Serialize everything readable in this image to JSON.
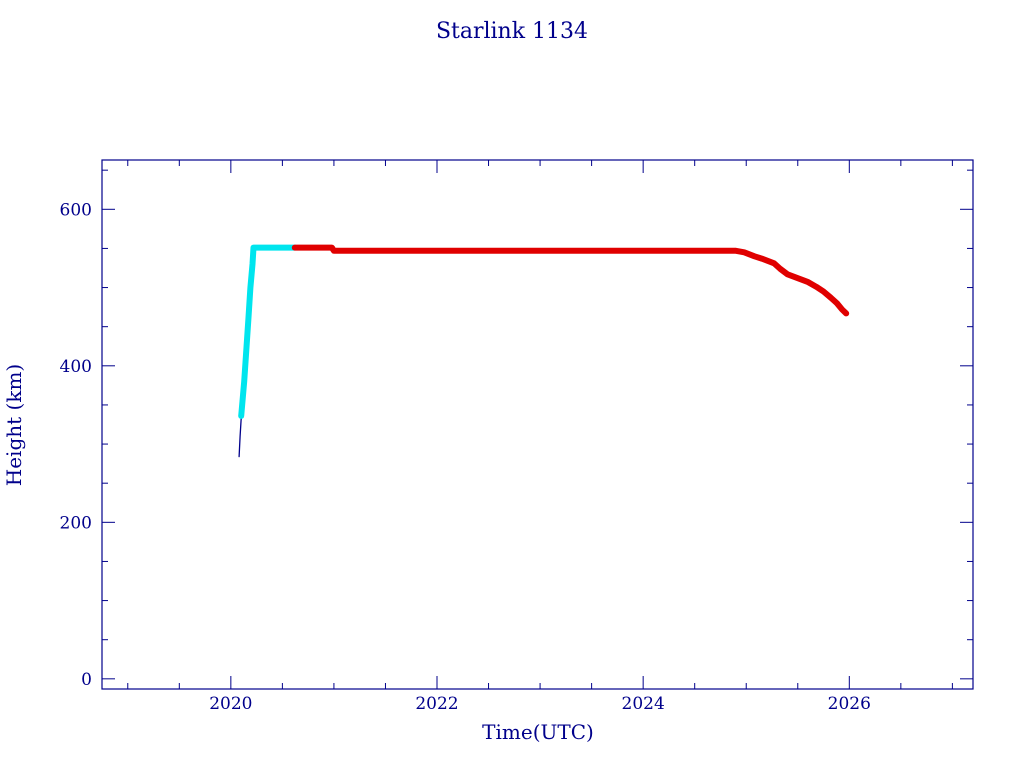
{
  "colors": {
    "axis": "#00008b",
    "text": "#00008b",
    "orbit_raising": "#00e5ee",
    "operational": "#e00000",
    "launch": "#00008b"
  },
  "chart_data": {
    "type": "line",
    "title": "Starlink 1134",
    "xlabel": "Time(UTC)",
    "ylabel": "Height (km)",
    "xlim": [
      2018.75,
      2027.2
    ],
    "ylim": [
      -13,
      663
    ],
    "x_ticks": [
      2020,
      2022,
      2024,
      2026
    ],
    "x_tick_labels": [
      "2020",
      "2022",
      "2024",
      "2026"
    ],
    "y_ticks": [
      0,
      200,
      400,
      600
    ],
    "y_tick_labels": [
      "0",
      "200",
      "400",
      "600"
    ],
    "grid": false,
    "legend": false,
    "series": [
      {
        "color_key": "launch",
        "style": "thin-line",
        "points": [
          [
            2020.08,
            284
          ],
          [
            2020.09,
            310
          ],
          [
            2020.1,
            333
          ],
          [
            2020.11,
            336
          ]
        ]
      },
      {
        "color_key": "orbit_raising",
        "style": "thick-line",
        "points": [
          [
            2020.1,
            336
          ],
          [
            2020.13,
            380
          ],
          [
            2020.15,
            420
          ],
          [
            2020.17,
            460
          ],
          [
            2020.19,
            500
          ],
          [
            2020.21,
            530
          ],
          [
            2020.22,
            551
          ],
          [
            2020.35,
            551
          ],
          [
            2020.5,
            551
          ],
          [
            2020.62,
            551
          ]
        ]
      },
      {
        "color_key": "operational",
        "style": "thick-line",
        "points": [
          [
            2020.62,
            551
          ],
          [
            2020.8,
            551
          ],
          [
            2020.98,
            551
          ],
          [
            2021.0,
            547
          ],
          [
            2021.5,
            547
          ],
          [
            2022.0,
            547
          ],
          [
            2022.5,
            547
          ],
          [
            2023.0,
            547
          ],
          [
            2023.5,
            547
          ],
          [
            2024.0,
            547
          ],
          [
            2024.5,
            547
          ],
          [
            2024.9,
            547
          ],
          [
            2024.98,
            545
          ],
          [
            2025.08,
            540
          ],
          [
            2025.15,
            537
          ],
          [
            2025.27,
            531
          ],
          [
            2025.33,
            524
          ],
          [
            2025.4,
            517
          ],
          [
            2025.5,
            512
          ],
          [
            2025.6,
            507
          ],
          [
            2025.68,
            501
          ],
          [
            2025.75,
            495
          ],
          [
            2025.82,
            487
          ],
          [
            2025.88,
            480
          ],
          [
            2025.93,
            472
          ],
          [
            2025.97,
            467
          ]
        ]
      }
    ]
  }
}
